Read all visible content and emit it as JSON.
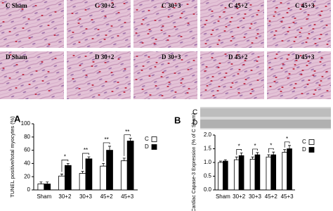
{
  "micrographs": {
    "labels": [
      "C Sham",
      "C 30+2",
      "C 30+3",
      "C 45+2",
      "C 45+3",
      "D Sham",
      "D 30+2",
      "D 30+3",
      "D 45+2",
      "D 45+3"
    ]
  },
  "chart_data": [
    {
      "type": "bar",
      "panel_label": "A",
      "ylabel": "TUNEL positive/total myocytes (%)",
      "categories": [
        "Sham",
        "30+2",
        "30+3",
        "45+2",
        "45+3"
      ],
      "series": [
        {
          "name": "C",
          "color": "#ffffff",
          "values": [
            9,
            21,
            25,
            36,
            44
          ],
          "errors": [
            3,
            3,
            3,
            4,
            4
          ]
        },
        {
          "name": "D",
          "color": "#000000",
          "values": [
            9,
            37,
            47,
            60,
            74
          ],
          "errors": [
            3,
            3,
            3,
            6,
            4
          ]
        }
      ],
      "annotations": [
        null,
        "*",
        "**",
        "**",
        "**"
      ],
      "ylim": [
        0,
        100
      ],
      "yticks": [
        0,
        20,
        40,
        60,
        80,
        100
      ],
      "legend": "right"
    },
    {
      "type": "bar",
      "panel_label": "B",
      "ylabel": "Cardiac Capase-3 Expression (% of C Sham)",
      "blot_labels": [
        "C",
        "D"
      ],
      "categories": [
        "Sham",
        "30+2",
        "30+3",
        "45+2",
        "45+3"
      ],
      "series": [
        {
          "name": "C",
          "color": "#ffffff",
          "values": [
            1.0,
            1.1,
            1.12,
            1.2,
            1.37
          ],
          "errors": [
            0.05,
            0.1,
            0.08,
            0.08,
            0.1
          ]
        },
        {
          "name": "D",
          "color": "#000000",
          "values": [
            1.05,
            1.25,
            1.28,
            1.28,
            1.5
          ],
          "errors": [
            0.05,
            0.1,
            0.08,
            0.1,
            0.12
          ]
        }
      ],
      "annotations": [
        null,
        "*",
        "*",
        "*",
        "*"
      ],
      "ylim": [
        0,
        2
      ],
      "yticks": [
        {
          "value": 0,
          "label": "0.0"
        },
        {
          "value": 0.5,
          "label": "0.5"
        },
        {
          "value": 1,
          "label": "1.0"
        },
        {
          "value": 1.5,
          "label": "1.5"
        },
        {
          "value": 2,
          "label": "2.0"
        }
      ],
      "legend": "right"
    }
  ]
}
